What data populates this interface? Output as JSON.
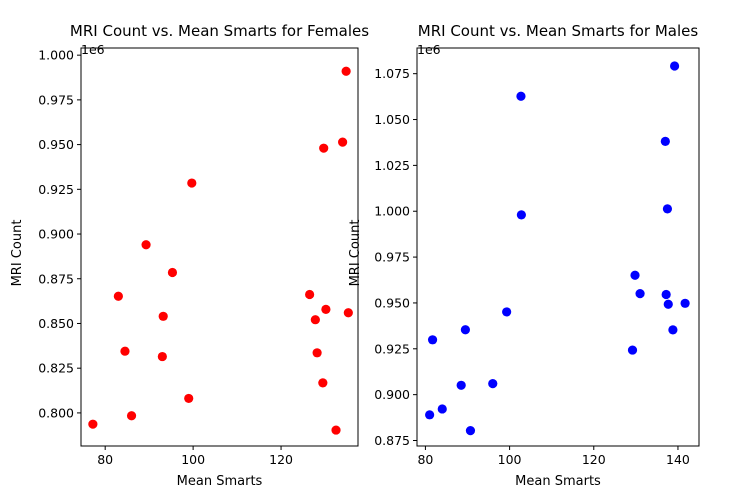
{
  "chart_data": [
    {
      "type": "scatter",
      "title": "MRI Count vs. Mean Smarts for Females",
      "xlabel": "Mean Smarts",
      "ylabel": "MRI Count",
      "offset_label": "1e6",
      "xlim": [
        74.5,
        137.5
      ],
      "ylim": [
        0.7815,
        1.004
      ],
      "x_ticks": [
        {
          "v": 80,
          "t": "80"
        },
        {
          "v": 100,
          "t": "100"
        },
        {
          "v": 120,
          "t": "120"
        }
      ],
      "y_ticks": [
        {
          "v": 0.8,
          "t": "0.800"
        },
        {
          "v": 0.825,
          "t": "0.825"
        },
        {
          "v": 0.85,
          "t": "0.850"
        },
        {
          "v": 0.875,
          "t": "0.875"
        },
        {
          "v": 0.9,
          "t": "0.900"
        },
        {
          "v": 0.925,
          "t": "0.925"
        },
        {
          "v": 0.95,
          "t": "0.950"
        },
        {
          "v": 0.975,
          "t": "0.975"
        },
        {
          "v": 1.0,
          "t": "1.000"
        }
      ],
      "color": "#ff0000",
      "points": [
        {
          "x": 77.2,
          "y": 0.7937
        },
        {
          "x": 83.0,
          "y": 0.8652
        },
        {
          "x": 84.5,
          "y": 0.8345
        },
        {
          "x": 86.0,
          "y": 0.7984
        },
        {
          "x": 89.3,
          "y": 0.894
        },
        {
          "x": 93.0,
          "y": 0.8315
        },
        {
          "x": 93.2,
          "y": 0.854
        },
        {
          "x": 95.3,
          "y": 0.8785
        },
        {
          "x": 99.0,
          "y": 0.8081
        },
        {
          "x": 99.7,
          "y": 0.9285
        },
        {
          "x": 126.5,
          "y": 0.8662
        },
        {
          "x": 127.8,
          "y": 0.8521
        },
        {
          "x": 128.2,
          "y": 0.8336
        },
        {
          "x": 129.5,
          "y": 0.8168
        },
        {
          "x": 129.7,
          "y": 0.948
        },
        {
          "x": 130.2,
          "y": 0.8579
        },
        {
          "x": 132.5,
          "y": 0.7904
        },
        {
          "x": 134.0,
          "y": 0.9514
        },
        {
          "x": 134.8,
          "y": 0.991
        },
        {
          "x": 135.3,
          "y": 0.856
        }
      ]
    },
    {
      "type": "scatter",
      "title": "MRI Count vs. Mean Smarts for Males",
      "xlabel": "Mean Smarts",
      "ylabel": "MRI Count",
      "offset_label": "1e6",
      "xlim": [
        78.0,
        145.0
      ],
      "ylim": [
        0.872,
        1.089
      ],
      "x_ticks": [
        {
          "v": 80,
          "t": "80"
        },
        {
          "v": 100,
          "t": "100"
        },
        {
          "v": 120,
          "t": "120"
        },
        {
          "v": 140,
          "t": "140"
        }
      ],
      "y_ticks": [
        {
          "v": 0.875,
          "t": "0.875"
        },
        {
          "v": 0.9,
          "t": "0.900"
        },
        {
          "v": 0.925,
          "t": "0.925"
        },
        {
          "v": 0.95,
          "t": "0.950"
        },
        {
          "v": 0.975,
          "t": "0.975"
        },
        {
          "v": 1.0,
          "t": "1.000"
        },
        {
          "v": 1.025,
          "t": "1.025"
        },
        {
          "v": 1.05,
          "t": "1.050"
        },
        {
          "v": 1.075,
          "t": "1.075"
        }
      ],
      "color": "#0000ff",
      "points": [
        {
          "x": 81.0,
          "y": 0.889
        },
        {
          "x": 81.7,
          "y": 0.9299
        },
        {
          "x": 84.0,
          "y": 0.8922
        },
        {
          "x": 88.5,
          "y": 0.9051
        },
        {
          "x": 89.5,
          "y": 0.9354
        },
        {
          "x": 90.7,
          "y": 0.8804
        },
        {
          "x": 96.0,
          "y": 0.906
        },
        {
          "x": 99.3,
          "y": 0.9451
        },
        {
          "x": 102.7,
          "y": 1.0627
        },
        {
          "x": 102.8,
          "y": 0.998
        },
        {
          "x": 129.2,
          "y": 0.9243
        },
        {
          "x": 129.8,
          "y": 0.9651
        },
        {
          "x": 131.0,
          "y": 0.9551
        },
        {
          "x": 137.0,
          "y": 1.0381
        },
        {
          "x": 137.2,
          "y": 0.9546
        },
        {
          "x": 137.5,
          "y": 1.0013
        },
        {
          "x": 137.7,
          "y": 0.9493
        },
        {
          "x": 138.8,
          "y": 0.9353
        },
        {
          "x": 139.2,
          "y": 1.0792
        },
        {
          "x": 141.7,
          "y": 0.9498
        }
      ]
    }
  ]
}
